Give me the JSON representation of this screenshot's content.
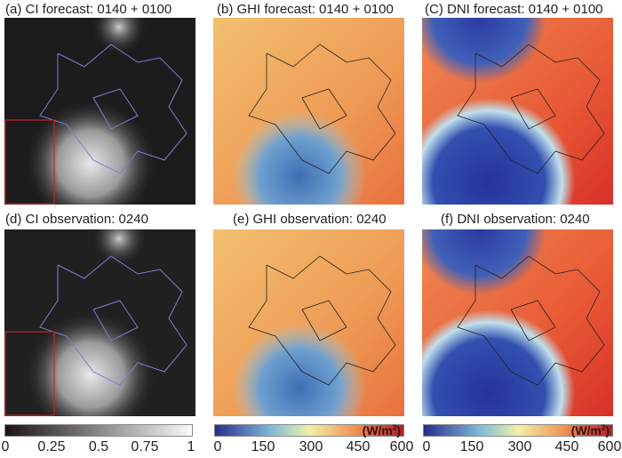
{
  "titles": {
    "a": "(a) CI forecast: 0140 + 0100",
    "b": "(b) GHI forecast: 0140 + 0100",
    "c": "(C) DNI forecast: 0140 + 0100",
    "d": "(d) CI observation: 0240",
    "e": "(e) GHI observation: 0240",
    "f": "(f) DNI observation: 0240"
  },
  "colorbars": {
    "ci": {
      "ticks": [
        "0",
        "0.25",
        "0.5",
        "0.75",
        "1"
      ]
    },
    "ghi": {
      "unit": "(W/m",
      "unit_sup": "2",
      "unit_close": ")",
      "ticks": [
        "0",
        "150",
        "300",
        "450",
        "600"
      ]
    },
    "dni": {
      "unit": "(W/m",
      "unit_sup": "2",
      "unit_close": ")",
      "ticks": [
        "0",
        "150",
        "300",
        "450",
        "600"
      ]
    }
  },
  "colors": {
    "border_ci": "#7a7fd0",
    "border_rad": "#222222",
    "highlight_box": "#d02020"
  }
}
